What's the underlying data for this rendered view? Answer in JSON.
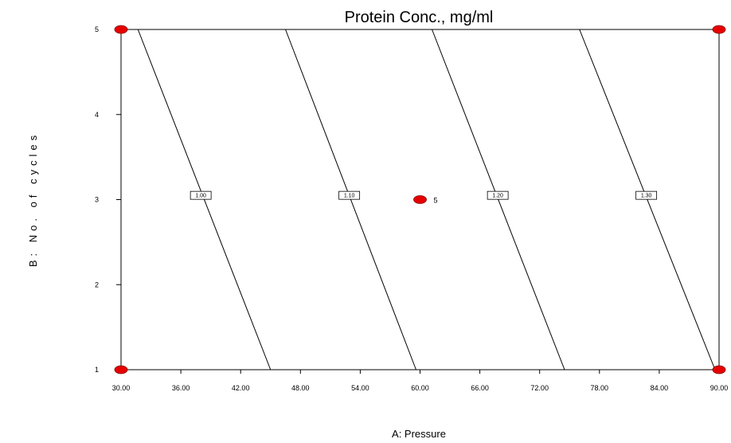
{
  "chart_data": {
    "type": "contour",
    "title": "Protein Conc., mg/ml",
    "xlabel": "A: Pressure",
    "ylabel": "B: No. of cycles",
    "xlim": [
      30,
      90
    ],
    "ylim": [
      1,
      5
    ],
    "x_ticks": [
      "30.00",
      "36.00",
      "42.00",
      "48.00",
      "54.00",
      "60.00",
      "66.00",
      "72.00",
      "78.00",
      "84.00",
      "90.00"
    ],
    "y_ticks": [
      "1",
      "2",
      "3",
      "4",
      "5"
    ],
    "contours": [
      {
        "level": "1.00",
        "points": [
          [
            31.7,
            5
          ],
          [
            45.0,
            1
          ]
        ],
        "label_at": [
          38.0,
          3.05
        ]
      },
      {
        "level": "1.10",
        "points": [
          [
            46.5,
            5
          ],
          [
            59.6,
            1
          ]
        ],
        "label_at": [
          52.9,
          3.05
        ]
      },
      {
        "level": "1.20",
        "points": [
          [
            61.2,
            5
          ],
          [
            74.5,
            1
          ]
        ],
        "label_at": [
          67.8,
          3.05
        ]
      },
      {
        "level": "1.30",
        "points": [
          [
            76.0,
            5
          ],
          [
            89.6,
            1
          ]
        ],
        "label_at": [
          82.7,
          3.05
        ]
      }
    ],
    "design_points": [
      {
        "x": 30,
        "y": 1,
        "label": ""
      },
      {
        "x": 30,
        "y": 5,
        "label": ""
      },
      {
        "x": 90,
        "y": 1,
        "label": ""
      },
      {
        "x": 90,
        "y": 5,
        "label": ""
      },
      {
        "x": 60,
        "y": 3,
        "label": "5"
      }
    ],
    "colors": {
      "design_point": "#e60000",
      "line": "#000000"
    }
  }
}
